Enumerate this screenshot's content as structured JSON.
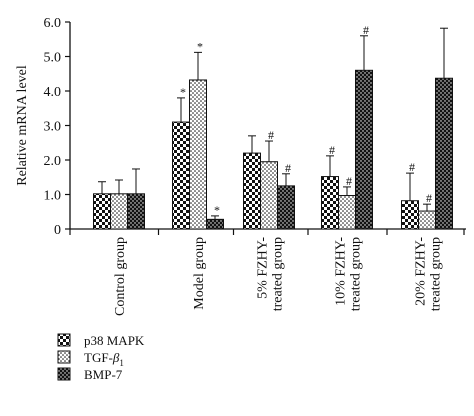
{
  "chart_data": {
    "type": "bar",
    "ylabel": "Relative mRNA level",
    "ylim": [
      0,
      6
    ],
    "yticks": [
      "0",
      "1.0",
      "2.0",
      "3.0",
      "4.0",
      "5.0",
      "6.0"
    ],
    "grid": false,
    "legend_position": "bottom-left",
    "categories": [
      [
        "Control group"
      ],
      [
        "Model group"
      ],
      [
        "5% FZHY-",
        "treated group"
      ],
      [
        "10% FZHY-",
        "treated group"
      ],
      [
        "20% FZHY-",
        "treated group"
      ]
    ],
    "series": [
      {
        "name": "p38 MAPK",
        "pattern": "checker",
        "values": [
          1.02,
          3.1,
          2.2,
          1.52,
          0.82
        ],
        "errors": [
          0.35,
          0.7,
          0.5,
          0.6,
          0.8
        ],
        "markers": [
          "",
          "*",
          "",
          "#",
          "#"
        ]
      },
      {
        "name": "TGF-β1",
        "name_main": "TGF-",
        "name_greek": "β",
        "name_sub": "1",
        "pattern": "dots",
        "values": [
          1.02,
          4.32,
          1.95,
          0.97,
          0.52
        ],
        "errors": [
          0.4,
          0.8,
          0.6,
          0.25,
          0.2
        ],
        "markers": [
          "",
          "*",
          "#",
          "#",
          "#"
        ]
      },
      {
        "name": "BMP-7",
        "pattern": "dark",
        "values": [
          1.02,
          0.28,
          1.25,
          4.6,
          4.37
        ],
        "errors": [
          0.72,
          0.1,
          0.35,
          1.0,
          1.45
        ],
        "markers": [
          "",
          "*",
          "#",
          "#",
          ""
        ]
      }
    ]
  }
}
